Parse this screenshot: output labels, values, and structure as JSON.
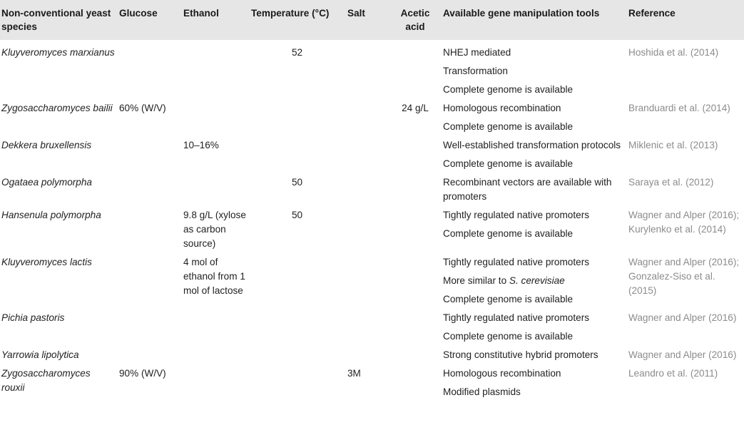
{
  "headers": {
    "species": "Non-conventional yeast species",
    "glucose": "Glucose",
    "ethanol": "Ethanol",
    "temperature": "Temperature (°C)",
    "salt": "Salt",
    "acetic": "Acetic acid",
    "tools": "Available gene manipulation tools",
    "reference": "Reference"
  },
  "rows": [
    {
      "species": "Kluyveromyces marxianus",
      "glucose": "",
      "ethanol": "",
      "temperature": "52",
      "salt": "",
      "acetic": "",
      "tools": [
        "NHEJ mediated",
        "Transformation",
        "Complete genome is available"
      ],
      "reference": "Hoshida et al. (2014)"
    },
    {
      "species": "Zygosaccharomyces bailii",
      "glucose": "60% (W/V)",
      "ethanol": "",
      "temperature": "",
      "salt": "",
      "acetic": "24 g/L",
      "tools": [
        "Homologous recombination",
        "Complete genome is available"
      ],
      "reference": "Branduardi et al. (2014)"
    },
    {
      "species": "Dekkera bruxellensis",
      "glucose": "",
      "ethanol": "10–16%",
      "temperature": "",
      "salt": "",
      "acetic": "",
      "tools": [
        "Well-established transformation protocols",
        "Complete genome is available"
      ],
      "reference": "Miklenic et al. (2013)"
    },
    {
      "species": "Ogataea polymorpha",
      "glucose": "",
      "ethanol": "",
      "temperature": "50",
      "salt": "",
      "acetic": "",
      "tools": [
        "Recombinant vectors are available with promoters"
      ],
      "reference": "Saraya et al. (2012)"
    },
    {
      "species": "Hansenula polymorpha",
      "glucose": "",
      "ethanol": "9.8 g/L (xylose as carbon source)",
      "temperature": "50",
      "salt": "",
      "acetic": "",
      "tools": [
        "Tightly regulated native promoters",
        "Complete genome is available"
      ],
      "reference": "Wagner and Alper (2016); Kurylenko et al. (2014)"
    },
    {
      "species": "Kluyveromyces lactis",
      "glucose": "",
      "ethanol": "4 mol of ethanol from 1 mol of lactose",
      "temperature": "",
      "salt": "",
      "acetic": "",
      "tools": [
        "Tightly regulated native promoters",
        "More similar to ",
        "Complete genome is available"
      ],
      "tools_italic_suffix": "S. cerevisiae",
      "reference": "Wagner and Alper (2016); Gonzalez-Siso et al. (2015)"
    },
    {
      "species": "Pichia pastoris",
      "glucose": "",
      "ethanol": "",
      "temperature": "",
      "salt": "",
      "acetic": "",
      "tools": [
        "Tightly regulated native promoters",
        "Complete genome is available"
      ],
      "reference": "Wagner and Alper (2016)"
    },
    {
      "species": "Yarrowia lipolytica",
      "glucose": "",
      "ethanol": "",
      "temperature": "",
      "salt": "",
      "acetic": "",
      "tools": [
        "Strong constitutive hybrid promoters"
      ],
      "reference": "Wagner and Alper (2016)"
    },
    {
      "species": "Zygosaccharomyces rouxii",
      "glucose": "90% (W/V)",
      "ethanol": "",
      "temperature": "",
      "salt": "3M",
      "acetic": "",
      "tools": [
        "Homologous recombination",
        "Modified plasmids"
      ],
      "reference": "Leandro et al. (2011)"
    }
  ]
}
